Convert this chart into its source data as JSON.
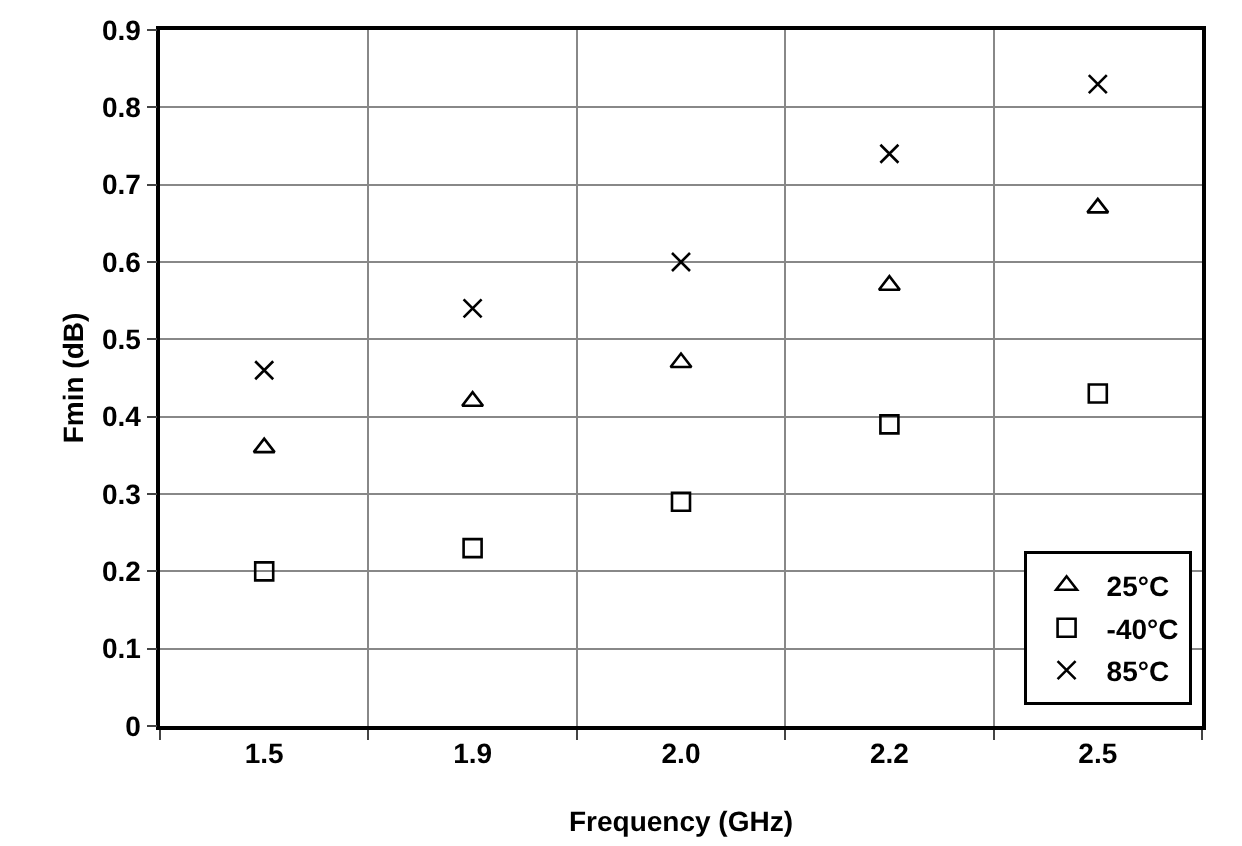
{
  "chart_data": {
    "type": "scatter",
    "xlabel": "Frequency (GHz)",
    "ylabel": "Fmin (dB)",
    "categories": [
      "1.5",
      "1.9",
      "2.0",
      "2.2",
      "2.5"
    ],
    "series": [
      {
        "name": "25°C",
        "color": "#000000",
        "marker": "triangle",
        "values": [
          0.36,
          0.42,
          0.47,
          0.57,
          0.67
        ]
      },
      {
        "name": "-40°C",
        "color": "#000000",
        "marker": "square",
        "values": [
          0.2,
          0.23,
          0.29,
          0.39,
          0.43
        ]
      },
      {
        "name": "85°C",
        "color": "#000000",
        "marker": "cross",
        "values": [
          0.46,
          0.54,
          0.6,
          0.74,
          0.83
        ]
      }
    ],
    "ylim": [
      0,
      0.9
    ],
    "yticks": [
      0,
      0.1,
      0.2,
      0.3,
      0.4,
      0.5,
      0.6,
      0.7,
      0.8,
      0.9
    ],
    "grid": true,
    "legend": "bottom right"
  }
}
